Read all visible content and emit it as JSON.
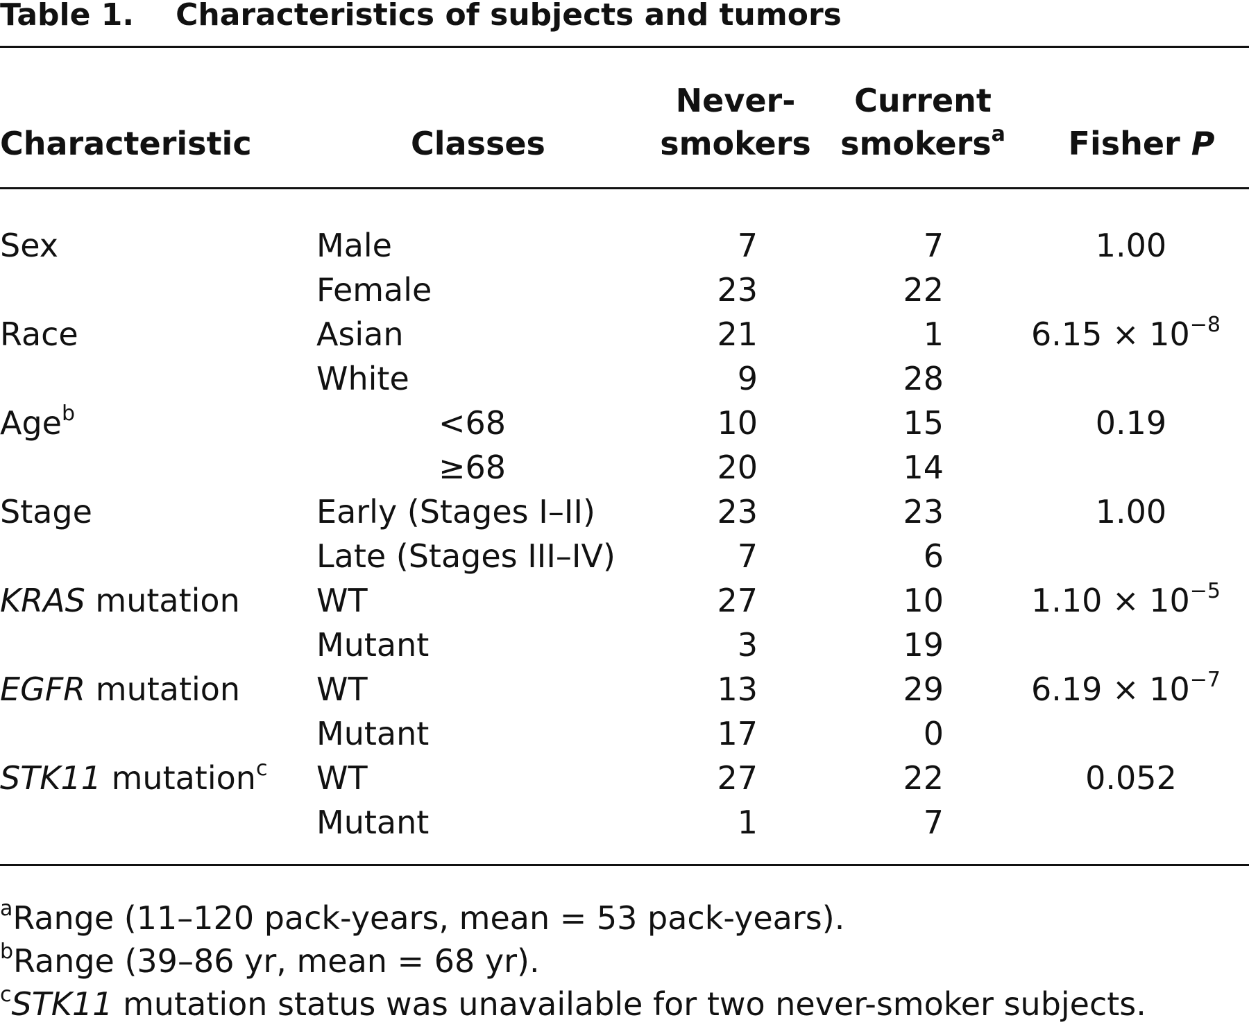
{
  "title": {
    "label": "Table 1.",
    "text": "Characteristics of subjects and tumors"
  },
  "headers": {
    "characteristic": "Characteristic",
    "classes": "Classes",
    "never_line1": "Never-",
    "never_line2": "smokers",
    "current_line1": "Current",
    "current_line2": "smokers",
    "current_sup": "a",
    "fisher": "Fisher",
    "fisher_p": "P"
  },
  "rows": [
    {
      "char": "Sex",
      "char_italic": "",
      "char_sup": "",
      "cls": "Male",
      "never": "7",
      "current": "7",
      "p_base": "1.00",
      "p_exp": ""
    },
    {
      "char": "",
      "char_italic": "",
      "char_sup": "",
      "cls": "Female",
      "never": "23",
      "current": "22",
      "p_base": "",
      "p_exp": ""
    },
    {
      "char": "Race",
      "char_italic": "",
      "char_sup": "",
      "cls": "Asian",
      "never": "21",
      "current": "1",
      "p_base": "6.15 × 10",
      "p_exp": "−8"
    },
    {
      "char": "",
      "char_italic": "",
      "char_sup": "",
      "cls": "White",
      "never": "9",
      "current": "28",
      "p_base": "",
      "p_exp": ""
    },
    {
      "char": "Age",
      "char_italic": "",
      "char_sup": "b",
      "cls": "<68",
      "never": "10",
      "current": "15",
      "p_base": "0.19",
      "p_exp": ""
    },
    {
      "char": "",
      "char_italic": "",
      "char_sup": "",
      "cls": "≥68",
      "never": "20",
      "current": "14",
      "p_base": "",
      "p_exp": ""
    },
    {
      "char": "Stage",
      "char_italic": "",
      "char_sup": "",
      "cls": "Early (Stages I–II)",
      "never": "23",
      "current": "23",
      "p_base": "1.00",
      "p_exp": ""
    },
    {
      "char": "",
      "char_italic": "",
      "char_sup": "",
      "cls": "Late (Stages III–IV)",
      "never": "7",
      "current": "6",
      "p_base": "",
      "p_exp": ""
    },
    {
      "char": " mutation",
      "char_italic": "KRAS",
      "char_sup": "",
      "cls": "WT",
      "never": "27",
      "current": "10",
      "p_base": "1.10 × 10",
      "p_exp": "−5"
    },
    {
      "char": "",
      "char_italic": "",
      "char_sup": "",
      "cls": "Mutant",
      "never": "3",
      "current": "19",
      "p_base": "",
      "p_exp": ""
    },
    {
      "char": " mutation",
      "char_italic": "EGFR",
      "char_sup": "",
      "cls": "WT",
      "never": "13",
      "current": "29",
      "p_base": "6.19 × 10",
      "p_exp": "−7"
    },
    {
      "char": "",
      "char_italic": "",
      "char_sup": "",
      "cls": "Mutant",
      "never": "17",
      "current": "0",
      "p_base": "",
      "p_exp": ""
    },
    {
      "char": " mutation",
      "char_italic": "STK11",
      "char_sup": "c",
      "cls": "WT",
      "never": "27",
      "current": "22",
      "p_base": "0.052",
      "p_exp": ""
    },
    {
      "char": "",
      "char_italic": "",
      "char_sup": "",
      "cls": "Mutant",
      "never": "1",
      "current": "7",
      "p_base": "",
      "p_exp": ""
    }
  ],
  "footnotes": [
    {
      "sup": "a",
      "italic": "",
      "text": "Range (11–120 pack-years, mean = 53 pack-years)."
    },
    {
      "sup": "b",
      "italic": "",
      "text": "Range (39–86 yr, mean = 68 yr)."
    },
    {
      "sup": "c",
      "italic": "STK11",
      "text": " mutation status was unavailable for two never-smoker subjects."
    }
  ]
}
